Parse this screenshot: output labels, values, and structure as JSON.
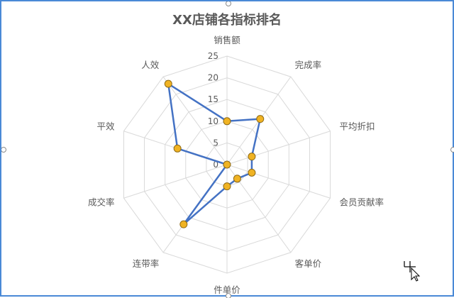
{
  "chart_data": {
    "type": "radar",
    "title": "XX店铺各指标排名",
    "categories": [
      "销售额",
      "完成率",
      "平均折扣",
      "会员贡献率",
      "客单价",
      "件单价",
      "连带率",
      "成交率",
      "平效",
      "人效"
    ],
    "series": [
      {
        "values": [
          10,
          13,
          6,
          6,
          4,
          5,
          17,
          0,
          12,
          23
        ]
      }
    ],
    "r_ticks": [
      0,
      5,
      10,
      15,
      20,
      25
    ],
    "rlim": [
      0,
      25
    ],
    "grid": true,
    "legend": "none",
    "colors": {
      "line": "#4472c4",
      "marker_fill": "#f0b323",
      "marker_stroke": "#8f6a14",
      "grid": "#d9d9d9",
      "frame": "#4a89d6"
    }
  }
}
